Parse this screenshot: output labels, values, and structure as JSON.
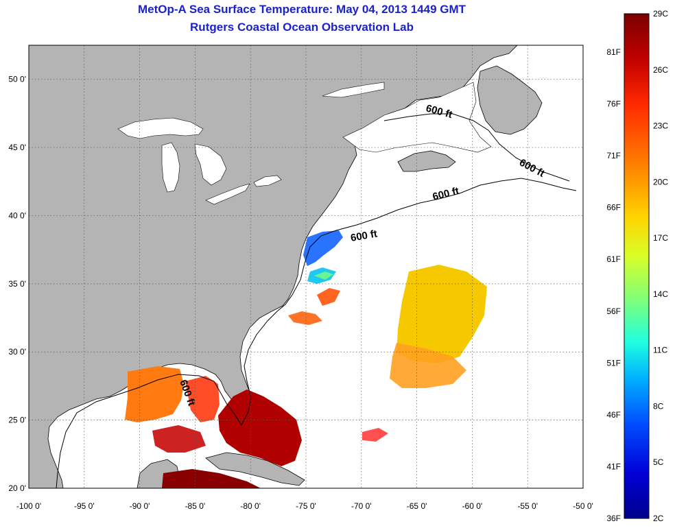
{
  "header": {
    "title": "MetOp-A Sea Surface Temperature:  May 04, 2013 1449 GMT",
    "subtitle": "Rutgers Coastal Ocean Observation Lab"
  },
  "map": {
    "lon_range": [
      -100,
      -50
    ],
    "lat_range": [
      20,
      52.5
    ],
    "lon_ticks": [
      "-100 0'",
      "-95 0'",
      "-90 0'",
      "-85 0'",
      "-80 0'",
      "-75 0'",
      "-70 0'",
      "-65 0'",
      "-60 0'",
      "-55 0'",
      "-50 0'"
    ],
    "lat_ticks": [
      "20 0'",
      "25 0'",
      "30 0'",
      "35 0'",
      "40 0'",
      "45 0'",
      "50 0'"
    ],
    "grid": true,
    "land_color": "#b4b4b4",
    "depth_contour_label": "600 ft"
  },
  "colorbar": {
    "celsius_labels": [
      "29C",
      "26C",
      "23C",
      "20C",
      "17C",
      "14C",
      "11C",
      "8C",
      "5C",
      "2C"
    ],
    "fahrenheit_labels": [
      "81F",
      "76F",
      "71F",
      "66F",
      "61F",
      "56F",
      "51F",
      "46F",
      "41F",
      "36F"
    ],
    "colors": [
      "#7a0000",
      "#c20000",
      "#ff2a00",
      "#ff8000",
      "#ffd200",
      "#d8ff28",
      "#7cff7c",
      "#20ffe0",
      "#00b4ff",
      "#0050ff",
      "#0000d8",
      "#00008a"
    ]
  }
}
